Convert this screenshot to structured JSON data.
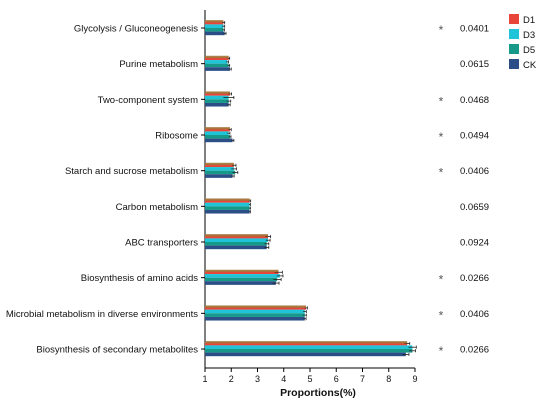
{
  "chart_data": {
    "type": "bar",
    "orientation": "horizontal",
    "xlabel": "Proportions(%)",
    "xlim": [
      1,
      9
    ],
    "xticks": [
      "1",
      "2",
      "3",
      "4",
      "5",
      "6",
      "7",
      "8",
      "9"
    ],
    "legend_position": "top-right",
    "categories": [
      "Glycolysis / Gluconeogenesis",
      "Purine metabolism",
      "Two-component system",
      "Ribosome",
      "Starch and sucrose metabolism",
      "Carbon metabolism",
      "ABC transporters",
      "Biosynthesis of amino acids",
      "Microbial metabolism in diverse environments",
      "Biosynthesis of secondary metabolites"
    ],
    "series": [
      {
        "name": "D1",
        "color": "#e8443a",
        "values": [
          1.7,
          1.9,
          1.95,
          1.95,
          2.1,
          2.7,
          3.4,
          3.8,
          4.85,
          8.7
        ],
        "errors": [
          0.05,
          0.04,
          0.06,
          0.05,
          0.08,
          0.04,
          0.1,
          0.15,
          0.05,
          0.1
        ]
      },
      {
        "name": "D3",
        "color": "#1fc4d8",
        "values": [
          1.7,
          1.85,
          1.9,
          1.9,
          2.1,
          2.7,
          3.4,
          3.85,
          4.8,
          8.9
        ],
        "errors": [
          0.05,
          0.05,
          0.2,
          0.05,
          0.1,
          0.03,
          0.08,
          0.12,
          0.06,
          0.15
        ]
      },
      {
        "name": "D5",
        "color": "#17998a",
        "values": [
          1.7,
          1.9,
          1.9,
          1.95,
          2.15,
          2.7,
          3.35,
          3.75,
          4.8,
          8.9
        ],
        "errors": [
          0.04,
          0.04,
          0.08,
          0.04,
          0.1,
          0.03,
          0.08,
          0.15,
          0.06,
          0.12
        ]
      },
      {
        "name": "CK",
        "color": "#2c4e86",
        "values": [
          1.75,
          1.95,
          1.9,
          2.05,
          2.05,
          2.7,
          3.35,
          3.7,
          4.8,
          8.65
        ],
        "errors": [
          0.05,
          0.05,
          0.06,
          0.05,
          0.06,
          0.03,
          0.08,
          0.12,
          0.05,
          0.12
        ]
      }
    ],
    "overlay_color": "#a07a3c",
    "significance": [
      "*",
      "",
      "*",
      "*",
      "*",
      "",
      "",
      "*",
      "*",
      "*"
    ],
    "p_values": [
      "0.0401",
      "0.0615",
      "0.0468",
      "0.0494",
      "0.0406",
      "0.0659",
      "0.0924",
      "0.0266",
      "0.0406",
      "0.0266"
    ]
  }
}
